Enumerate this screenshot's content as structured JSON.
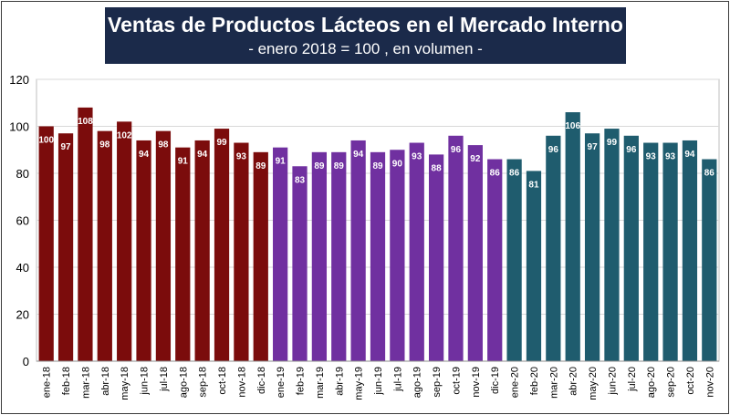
{
  "chart_data": {
    "type": "bar",
    "title": "Ventas de Productos Lácteos en el Mercado Interno",
    "subtitle": "- enero 2018 = 100 , en volumen -",
    "xlabel": "",
    "ylabel": "",
    "ylim": [
      0,
      120
    ],
    "yticks": [
      0,
      20,
      40,
      60,
      80,
      100,
      120
    ],
    "grid": true,
    "legend": "none",
    "categories": [
      "ene-18",
      "feb-18",
      "mar-18",
      "abr-18",
      "may-18",
      "jun-18",
      "jul-18",
      "ago-18",
      "sep-18",
      "oct-18",
      "nov-18",
      "dic-18",
      "ene-19",
      "feb-19",
      "mar-19",
      "abr-19",
      "may-19",
      "jun-19",
      "jul-19",
      "ago-19",
      "sep-19",
      "oct-19",
      "nov-19",
      "dic-19",
      "ene-20",
      "feb-20",
      "mar-20",
      "abr-20",
      "may-20",
      "jun-20",
      "jul-20",
      "ago-20",
      "sep-20",
      "oct-20",
      "nov-20"
    ],
    "values": [
      100,
      97,
      108,
      98,
      102,
      94,
      98,
      91,
      94,
      99,
      93,
      89,
      91,
      83,
      89,
      89,
      94,
      89,
      90,
      93,
      88,
      96,
      92,
      86,
      86,
      81,
      96,
      106,
      97,
      99,
      96,
      93,
      93,
      94,
      86
    ],
    "year_colors": {
      "2018": "#7b0c0c",
      "2019": "#7030a0",
      "2020": "#1f5c6e"
    }
  }
}
